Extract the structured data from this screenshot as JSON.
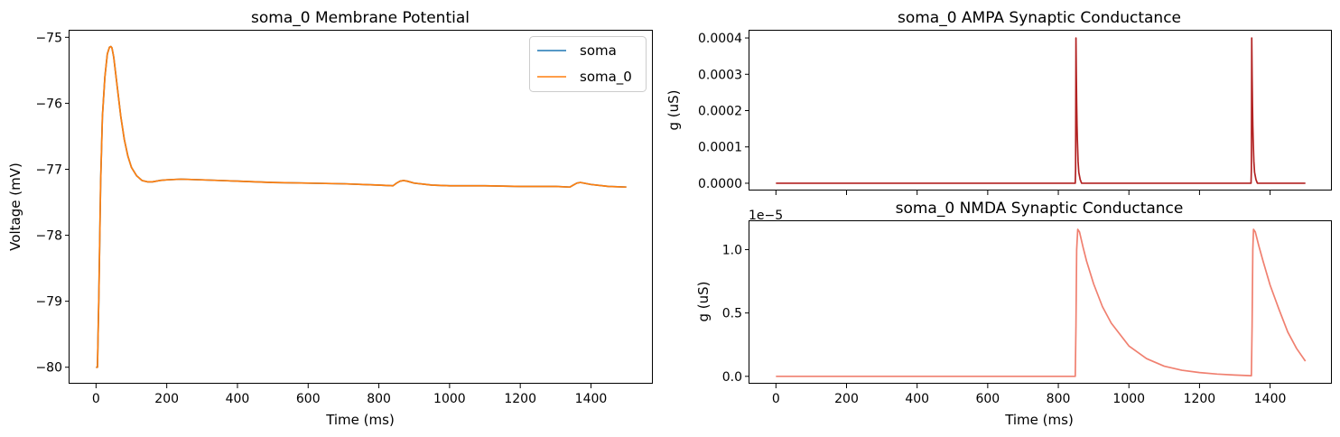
{
  "chart_data": [
    {
      "id": "vm",
      "type": "line",
      "title": "soma_0 Membrane Potential",
      "xlabel": "Time (ms)",
      "ylabel": "Voltage (mV)",
      "xlim": [
        -75,
        1575
      ],
      "ylim": [
        -80.25,
        -74.9
      ],
      "xticks": [
        0,
        200,
        400,
        600,
        800,
        1000,
        1200,
        1400
      ],
      "xtick_labels": [
        "0",
        "200",
        "400",
        "600",
        "800",
        "1000",
        "1200",
        "1400"
      ],
      "yticks": [
        -80,
        -79,
        -78,
        -77,
        -76,
        -75
      ],
      "ytick_labels": [
        "−80",
        "−79",
        "−78",
        "−77",
        "−76",
        "−75"
      ],
      "legend": "top-right",
      "series": [
        {
          "name": "soma",
          "color": "#1f77b4",
          "x": [
            0,
            4,
            8,
            13,
            18,
            25,
            32,
            38,
            42,
            45,
            50,
            60,
            70,
            80,
            90,
            100,
            115,
            130,
            145,
            160,
            180,
            200,
            240,
            300,
            400,
            500,
            600,
            700,
            800,
            840,
            850,
            860,
            870,
            880,
            900,
            950,
            1000,
            1100,
            1200,
            1300,
            1340,
            1350,
            1360,
            1370,
            1380,
            1400,
            1450,
            1500
          ],
          "y": [
            -80.0,
            -80.0,
            -78.9,
            -77.2,
            -76.2,
            -75.6,
            -75.25,
            -75.15,
            -75.14,
            -75.16,
            -75.3,
            -75.75,
            -76.2,
            -76.55,
            -76.8,
            -76.97,
            -77.1,
            -77.17,
            -77.19,
            -77.19,
            -77.17,
            -77.16,
            -77.15,
            -77.16,
            -77.18,
            -77.2,
            -77.21,
            -77.22,
            -77.24,
            -77.25,
            -77.21,
            -77.18,
            -77.17,
            -77.18,
            -77.21,
            -77.24,
            -77.25,
            -77.25,
            -77.26,
            -77.26,
            -77.27,
            -77.24,
            -77.21,
            -77.2,
            -77.21,
            -77.23,
            -77.26,
            -77.27
          ]
        },
        {
          "name": "soma_0",
          "color": "#ff7f0e",
          "x": [
            0,
            4,
            8,
            13,
            18,
            25,
            32,
            38,
            42,
            45,
            50,
            60,
            70,
            80,
            90,
            100,
            115,
            130,
            145,
            160,
            180,
            200,
            240,
            300,
            400,
            500,
            600,
            700,
            800,
            840,
            850,
            860,
            870,
            880,
            900,
            950,
            1000,
            1100,
            1200,
            1300,
            1340,
            1350,
            1360,
            1370,
            1380,
            1400,
            1450,
            1500
          ],
          "y": [
            -80.0,
            -80.0,
            -78.9,
            -77.2,
            -76.2,
            -75.6,
            -75.25,
            -75.15,
            -75.14,
            -75.16,
            -75.3,
            -75.75,
            -76.2,
            -76.55,
            -76.8,
            -76.97,
            -77.1,
            -77.17,
            -77.19,
            -77.19,
            -77.17,
            -77.16,
            -77.15,
            -77.16,
            -77.18,
            -77.2,
            -77.21,
            -77.22,
            -77.24,
            -77.25,
            -77.21,
            -77.18,
            -77.17,
            -77.18,
            -77.21,
            -77.24,
            -77.25,
            -77.25,
            -77.26,
            -77.26,
            -77.27,
            -77.24,
            -77.21,
            -77.2,
            -77.21,
            -77.23,
            -77.26,
            -77.27
          ]
        }
      ]
    },
    {
      "id": "ampa",
      "type": "line",
      "title": "soma_0 AMPA Synaptic Conductance",
      "xlabel": "",
      "ylabel": "g (uS)",
      "xlim": [
        -75,
        1575
      ],
      "ylim": [
        -2e-05,
        0.00042
      ],
      "xticks": [
        0,
        200,
        400,
        600,
        800,
        1000,
        1200,
        1400
      ],
      "xtick_labels": [],
      "yticks": [
        0,
        0.0001,
        0.0002,
        0.0003,
        0.0004
      ],
      "ytick_labels": [
        "0.0000",
        "0.0001",
        "0.0002",
        "0.0003",
        "0.0004"
      ],
      "series": [
        {
          "color": "#b22222",
          "x": [
            0,
            848,
            849,
            850,
            851,
            852,
            853,
            854,
            856,
            858,
            862,
            866,
            1346,
            1347,
            1348,
            1349,
            1350,
            1351,
            1352,
            1354,
            1356,
            1360,
            1364,
            1500
          ],
          "y": [
            0,
            0,
            4e-05,
            0.0004,
            0.0003,
            0.00022,
            0.00016,
            0.00012,
            6e-05,
            3e-05,
            1e-05,
            0,
            0,
            4e-05,
            0.0004,
            0.0003,
            0.00022,
            0.00016,
            0.00012,
            6e-05,
            3e-05,
            1e-05,
            0,
            0
          ]
        }
      ]
    },
    {
      "id": "nmda",
      "type": "line",
      "title": "soma_0 NMDA Synaptic Conductance",
      "xlabel": "Time (ms)",
      "ylabel": "g (uS)",
      "offset_label": "1e−5",
      "xlim": [
        -75,
        1575
      ],
      "ylim": [
        -5.83e-07,
        1.2243e-05
      ],
      "xticks": [
        0,
        200,
        400,
        600,
        800,
        1000,
        1200,
        1400
      ],
      "xtick_labels": [
        "0",
        "200",
        "400",
        "600",
        "800",
        "1000",
        "1200",
        "1400"
      ],
      "yticks": [
        0,
        5e-06,
        1e-05
      ],
      "ytick_labels": [
        "0.0",
        "0.5",
        "1.0"
      ],
      "series": [
        {
          "color": "#f08070",
          "x": [
            0,
            848,
            850,
            852,
            855,
            860,
            870,
            880,
            900,
            925,
            950,
            1000,
            1050,
            1100,
            1150,
            1200,
            1250,
            1300,
            1347,
            1349,
            1351,
            1353,
            1358,
            1368,
            1380,
            1400,
            1425,
            1450,
            1475,
            1500
          ],
          "y": [
            0,
            0,
            4e-06,
            1e-05,
            1.16e-05,
            1.14e-05,
            1.02e-05,
            9.1e-06,
            7.3e-06,
            5.5e-06,
            4.2e-06,
            2.4e-06,
            1.4e-06,
            8e-07,
            4.8e-07,
            3e-07,
            1.8e-07,
            1e-07,
            5e-08,
            4e-06,
            1e-05,
            1.16e-05,
            1.14e-05,
            1.03e-05,
            9.1e-06,
            7.2e-06,
            5.3e-06,
            3.5e-06,
            2.2e-06,
            1.2e-06
          ]
        }
      ]
    }
  ]
}
